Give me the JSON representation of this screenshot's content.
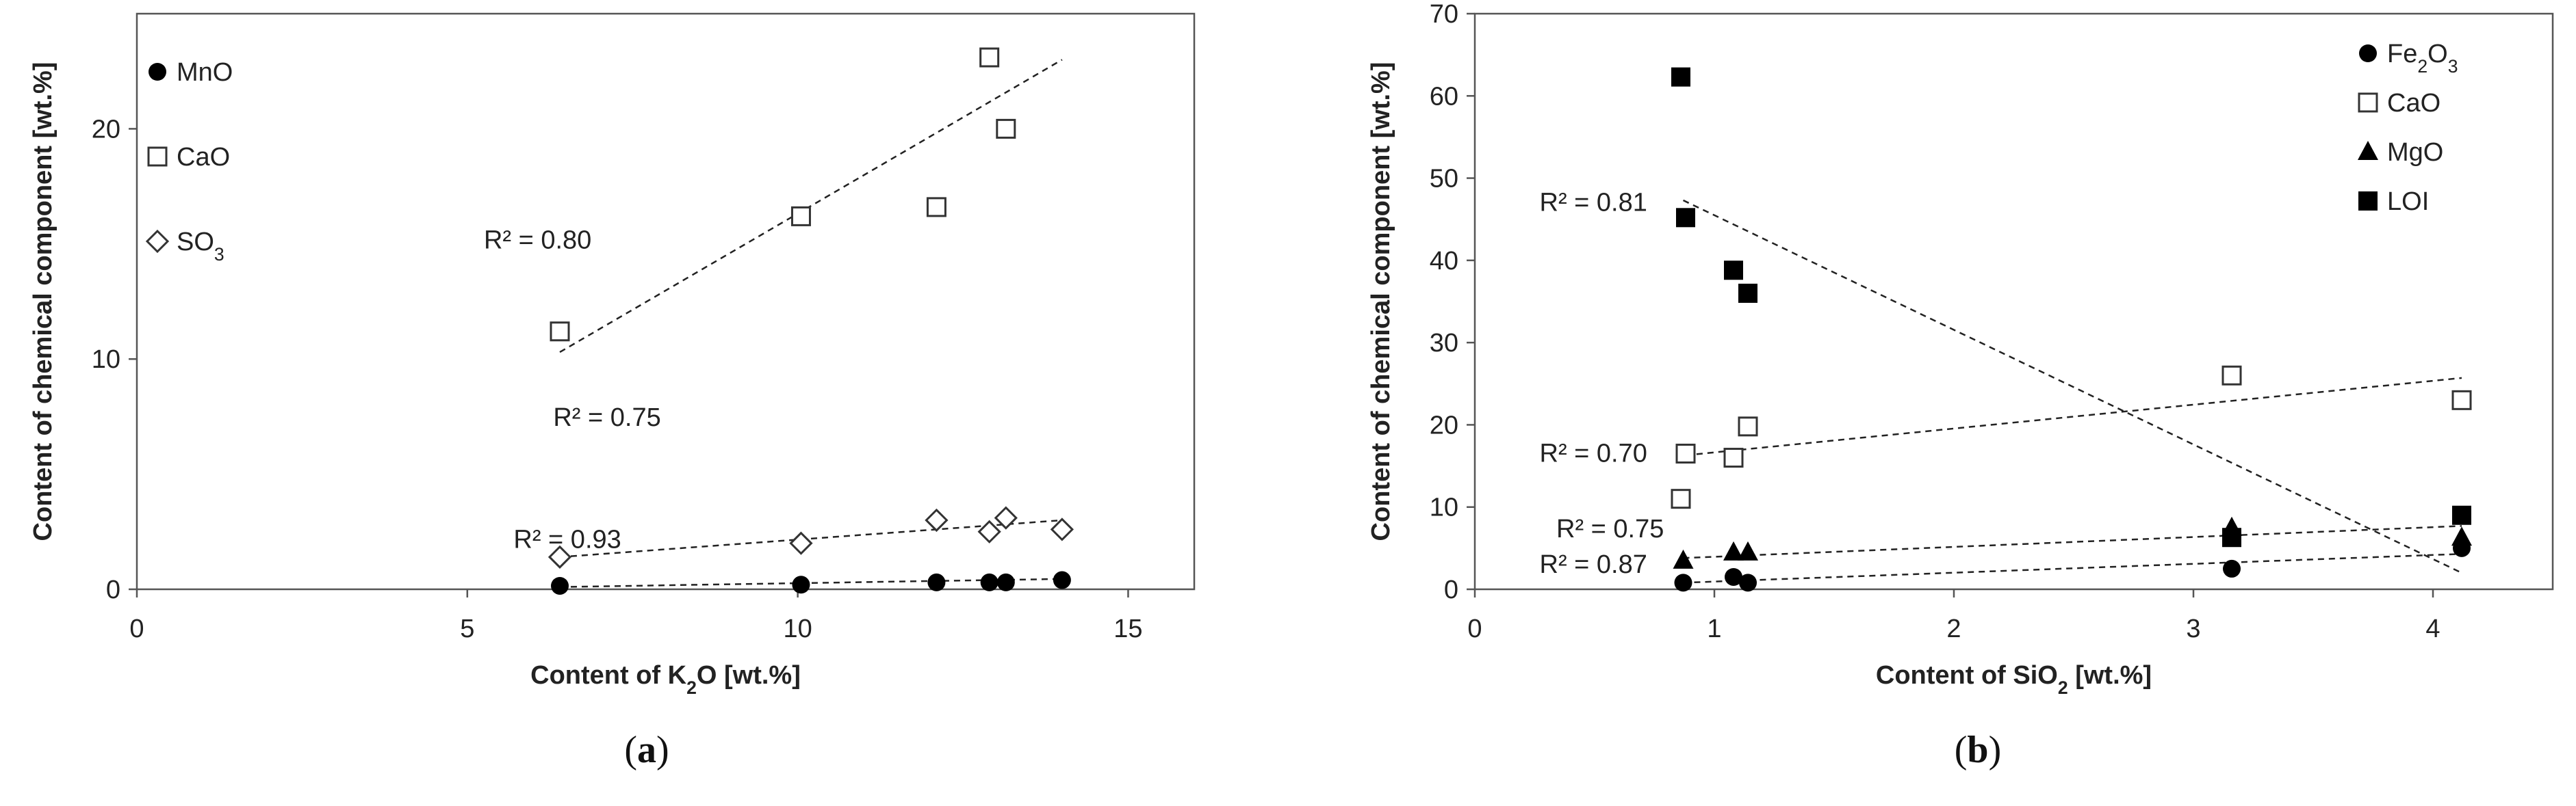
{
  "chart_data": [
    {
      "id": "a",
      "type": "scatter",
      "caption": "a",
      "xlabel_parts": [
        "Content of K",
        "2",
        "O [wt.%]"
      ],
      "ylabel": "Content of chemical component [wt.%]",
      "xlim": [
        0,
        16
      ],
      "ylim": [
        0,
        25
      ],
      "xticks": [
        0,
        5,
        10,
        15
      ],
      "yticks": [
        0,
        10,
        20
      ],
      "grid": false,
      "legend_position": "top-left",
      "series": [
        {
          "name": "MnO",
          "name_parts": [
            "MnO"
          ],
          "marker": "circle-filled",
          "points": [
            [
              6.4,
              0.15
            ],
            [
              10.05,
              0.2
            ],
            [
              12.1,
              0.3
            ],
            [
              12.9,
              0.3
            ],
            [
              13.15,
              0.3
            ],
            [
              14.0,
              0.4
            ]
          ],
          "trend": [
            [
              6.4,
              0.1
            ],
            [
              14.0,
              0.45
            ]
          ],
          "r2_label": "R² = 0.93",
          "r2_pos": [
            5.7,
            1.8
          ]
        },
        {
          "name": "CaO",
          "name_parts": [
            "CaO"
          ],
          "marker": "square-open",
          "points": [
            [
              6.4,
              11.2
            ],
            [
              10.05,
              16.2
            ],
            [
              12.1,
              16.6
            ],
            [
              12.9,
              23.1
            ],
            [
              13.15,
              20.0
            ]
          ],
          "trend": [
            [
              6.4,
              10.3
            ],
            [
              14.0,
              23.0
            ]
          ],
          "r2_label": "R² = 0.80",
          "r2_pos": [
            5.25,
            14.8
          ]
        },
        {
          "name": "SO3",
          "name_parts": [
            "SO",
            "3"
          ],
          "marker": "diamond-open",
          "points": [
            [
              6.4,
              1.4
            ],
            [
              10.05,
              2.0
            ],
            [
              12.1,
              3.0
            ],
            [
              12.9,
              2.5
            ],
            [
              13.15,
              3.1
            ],
            [
              14.0,
              2.6
            ]
          ],
          "trend": [
            [
              6.4,
              1.4
            ],
            [
              14.0,
              3.0
            ]
          ],
          "r2_label": "R² = 0.75",
          "r2_pos": [
            6.3,
            7.1
          ]
        }
      ]
    },
    {
      "id": "b",
      "type": "scatter",
      "caption": "b",
      "xlabel_parts": [
        "Content of SiO",
        "2",
        " [wt.%]"
      ],
      "ylabel": "Content of chemical component [wt.%]",
      "xlim": [
        0,
        4.5
      ],
      "ylim": [
        0,
        70
      ],
      "xticks": [
        0,
        1,
        2,
        3,
        4
      ],
      "yticks": [
        0,
        10,
        20,
        30,
        40,
        50,
        60,
        70
      ],
      "grid": false,
      "legend_position": "top-right",
      "series": [
        {
          "name": "Fe2O3",
          "name_parts": [
            "Fe",
            "2",
            "O",
            "3"
          ],
          "marker": "circle-filled",
          "points": [
            [
              0.87,
              0.8
            ],
            [
              1.08,
              1.5
            ],
            [
              1.14,
              0.8
            ],
            [
              3.16,
              2.5
            ],
            [
              4.12,
              5.0
            ]
          ],
          "trend": [
            [
              0.87,
              0.8
            ],
            [
              4.12,
              4.3
            ]
          ],
          "r2_label": "R² = 0.87",
          "r2_pos": [
            0.27,
            2.0
          ]
        },
        {
          "name": "CaO",
          "name_parts": [
            "CaO"
          ],
          "marker": "square-open",
          "points": [
            [
              0.86,
              11.0
            ],
            [
              0.88,
              16.5
            ],
            [
              1.08,
              16.0
            ],
            [
              1.14,
              19.8
            ],
            [
              3.16,
              26.0
            ],
            [
              4.12,
              23.0
            ]
          ],
          "trend": [
            [
              0.88,
              16.3
            ],
            [
              4.12,
              25.7
            ]
          ],
          "r2_label": "R² = 0.70",
          "r2_pos": [
            0.27,
            15.5
          ]
        },
        {
          "name": "MgO",
          "name_parts": [
            "MgO"
          ],
          "marker": "triangle-filled",
          "points": [
            [
              0.87,
              3.5
            ],
            [
              1.08,
              4.5
            ],
            [
              1.14,
              4.5
            ],
            [
              3.16,
              7.5
            ],
            [
              4.12,
              6.3
            ]
          ],
          "trend": [
            [
              0.87,
              3.8
            ],
            [
              4.12,
              7.7
            ]
          ],
          "r2_label": "R² = 0.75",
          "r2_pos": [
            0.34,
            6.3
          ]
        },
        {
          "name": "LOI",
          "name_parts": [
            "LOI"
          ],
          "marker": "square-filled",
          "points": [
            [
              0.86,
              62.3
            ],
            [
              0.88,
              45.2
            ],
            [
              1.08,
              38.8
            ],
            [
              1.14,
              36.0
            ],
            [
              3.16,
              6.3
            ],
            [
              4.12,
              9.0
            ]
          ],
          "trend": [
            [
              0.87,
              47.3
            ],
            [
              4.12,
              2.0
            ]
          ],
          "r2_label": "R² = 0.81",
          "r2_pos": [
            0.27,
            46.0
          ]
        }
      ]
    }
  ]
}
